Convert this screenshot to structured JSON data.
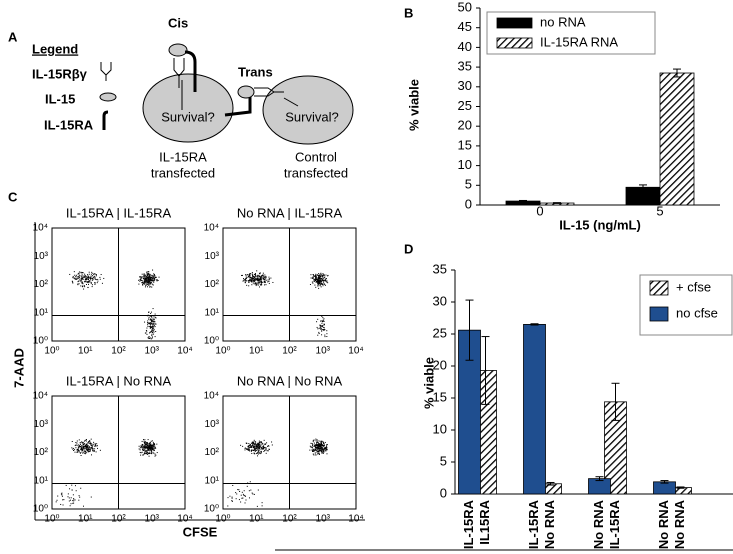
{
  "panel_labels": [
    "A",
    "B",
    "C",
    "D"
  ],
  "panel_a": {
    "legend_title": "Legend",
    "legend_items": [
      "IL-15Rβγ",
      "IL-15",
      "IL-15RA"
    ],
    "cis": "Cis",
    "trans": "Trans",
    "cells": [
      {
        "text": "Survival?",
        "caption": [
          "IL-15RA",
          "transfected"
        ]
      },
      {
        "text": "Survival?",
        "caption": [
          "Control",
          "transfected"
        ]
      }
    ]
  },
  "panel_c": {
    "y_label": "7-AAD",
    "x_label": "CFSE",
    "plots": [
      "IL-15RA | IL-15RA",
      "No RNA | IL-15RA",
      "IL-15RA | No RNA",
      "No RNA | No RNA"
    ],
    "log_scale": true,
    "xlim": [
      1,
      10000
    ],
    "ylim": [
      1,
      10000
    ],
    "xticks": [
      {
        "value": 1,
        "label": "10⁰"
      },
      {
        "value": 10,
        "label": "10¹"
      },
      {
        "value": 100,
        "label": "10²"
      },
      {
        "value": 1000,
        "label": "10³"
      },
      {
        "value": 10000,
        "label": "10⁴"
      }
    ],
    "yticks": [
      {
        "value": 1,
        "label": "10⁰"
      },
      {
        "value": 10,
        "label": "10¹"
      },
      {
        "value": 100,
        "label": "10²"
      },
      {
        "value": 1000,
        "label": "10³"
      },
      {
        "value": 10000,
        "label": "10⁴"
      }
    ],
    "gates": {
      "x": 100,
      "y": 8
    }
  },
  "chart_data": [
    {
      "type": "bar",
      "x_label": "IL-15 (ng/mL)",
      "y_label": "% viable",
      "categories": [
        "0",
        "5"
      ],
      "series": [
        {
          "name": "no RNA",
          "color": "#000000",
          "pattern": "solid",
          "values": [
            1,
            4.5
          ],
          "errors": [
            0.15,
            0.6
          ]
        },
        {
          "name": "IL-15RA RNA",
          "color": "#000000",
          "pattern": "hatch",
          "values": [
            0.5,
            33.5
          ],
          "errors": [
            0.1,
            1
          ]
        }
      ],
      "ylim": [
        0,
        50
      ],
      "yticks": [
        0,
        5,
        10,
        15,
        20,
        25,
        30,
        35,
        40,
        45,
        50
      ],
      "legend": "top"
    },
    {
      "type": "bar",
      "y_label": "% viable",
      "categories": [
        "IL-15RA",
        "IL15RA",
        "IL-15RA",
        "No RNA",
        "No RNA",
        "IL-15RA",
        "No RNA",
        "No RNA"
      ],
      "series": [
        {
          "name": "+ cfse",
          "color": "#000000",
          "pattern": "hatch",
          "values": [
            null,
            19.3,
            null,
            1.6,
            null,
            14.4,
            null,
            1
          ],
          "errors": [
            null,
            5.3,
            null,
            0.2,
            null,
            2.9,
            null,
            0.1
          ]
        },
        {
          "name": "no cfse",
          "color": "#1f4e8f",
          "pattern": "solid",
          "values": [
            25.6,
            null,
            26.5,
            null,
            2.4,
            null,
            1.9,
            null
          ],
          "errors": [
            4.7,
            null,
            0.1,
            null,
            0.3,
            null,
            0.2,
            null
          ]
        }
      ],
      "ylim": [
        0,
        35
      ],
      "yticks": [
        0,
        5,
        10,
        15,
        20,
        25,
        30,
        35
      ],
      "legend": "top-right"
    }
  ]
}
